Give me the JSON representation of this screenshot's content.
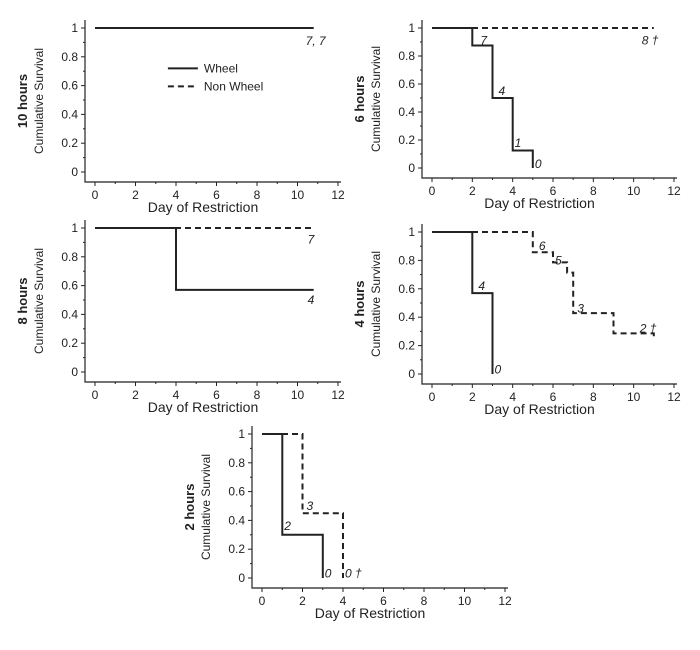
{
  "chart_data": [
    {
      "type": "line",
      "title": "10 hours",
      "xlabel": "Day of Restriction",
      "ylabel": "Cumulative Survival",
      "xlim": [
        0,
        12
      ],
      "ylim": [
        0,
        1
      ],
      "xticks": [
        0,
        2,
        4,
        6,
        8,
        10,
        12
      ],
      "yticks": [
        0,
        0.2,
        0.4,
        0.6,
        0.8,
        1
      ],
      "legend": {
        "position": "center",
        "entries": [
          {
            "name": "Wheel",
            "style": "solid"
          },
          {
            "name": "Non Wheel",
            "style": "dashed"
          }
        ]
      },
      "series": [
        {
          "name": "Wheel",
          "style": "solid",
          "x": [
            0,
            10.8
          ],
          "y": [
            1,
            1
          ]
        },
        {
          "name": "Non Wheel",
          "style": "dashed",
          "x": [
            0,
            10.8
          ],
          "y": [
            1,
            1
          ]
        }
      ],
      "annotations": [
        {
          "text": "7, 7",
          "x": 10.4,
          "y": 0.91
        }
      ]
    },
    {
      "type": "line",
      "title": "6 hours",
      "xlabel": "Day of Restriction",
      "ylabel": "Cumulative Survival",
      "xlim": [
        0,
        12
      ],
      "ylim": [
        0,
        1
      ],
      "xticks": [
        0,
        2,
        4,
        6,
        8,
        10,
        12
      ],
      "yticks": [
        0,
        0.2,
        0.4,
        0.6,
        0.8,
        1
      ],
      "series": [
        {
          "name": "Wheel",
          "style": "solid",
          "x": [
            0,
            2,
            2,
            3,
            3,
            4,
            4,
            5,
            5
          ],
          "y": [
            1,
            1,
            0.875,
            0.875,
            0.5,
            0.5,
            0.125,
            0.125,
            0
          ]
        },
        {
          "name": "Non Wheel",
          "style": "dashed",
          "x": [
            0,
            11
          ],
          "y": [
            1,
            1
          ]
        }
      ],
      "annotations": [
        {
          "text": "7",
          "x": 2.4,
          "y": 0.91
        },
        {
          "text": "4",
          "x": 3.3,
          "y": 0.55
        },
        {
          "text": "1",
          "x": 4.1,
          "y": 0.18
        },
        {
          "text": "0",
          "x": 5.1,
          "y": 0.03
        },
        {
          "text": "8 †",
          "x": 10.4,
          "y": 0.91
        }
      ]
    },
    {
      "type": "line",
      "title": "8 hours",
      "xlabel": "Day of Restriction",
      "ylabel": "Cumulative Survival",
      "xlim": [
        0,
        12
      ],
      "ylim": [
        0,
        1
      ],
      "xticks": [
        0,
        2,
        4,
        6,
        8,
        10,
        12
      ],
      "yticks": [
        0,
        0.2,
        0.4,
        0.6,
        0.8,
        1
      ],
      "series": [
        {
          "name": "Wheel",
          "style": "solid",
          "x": [
            0,
            4,
            4,
            10.8
          ],
          "y": [
            1,
            1,
            0.57,
            0.57
          ]
        },
        {
          "name": "Non Wheel",
          "style": "dashed",
          "x": [
            0,
            10.8
          ],
          "y": [
            1,
            1
          ]
        }
      ],
      "annotations": [
        {
          "text": "7",
          "x": 10.5,
          "y": 0.92
        },
        {
          "text": "4",
          "x": 10.5,
          "y": 0.5
        }
      ]
    },
    {
      "type": "line",
      "title": "4 hours",
      "xlabel": "Day of Restriction",
      "ylabel": "Cumulative Survival",
      "xlim": [
        0,
        12
      ],
      "ylim": [
        0,
        1
      ],
      "xticks": [
        0,
        2,
        4,
        6,
        8,
        10,
        12
      ],
      "yticks": [
        0,
        0.2,
        0.4,
        0.6,
        0.8,
        1
      ],
      "series": [
        {
          "name": "Wheel",
          "style": "solid",
          "x": [
            0,
            2,
            2,
            3,
            3
          ],
          "y": [
            1,
            1,
            0.57,
            0.57,
            0
          ]
        },
        {
          "name": "Non Wheel",
          "style": "dashed",
          "x": [
            0,
            5,
            5,
            6,
            6,
            6.7,
            6.7,
            7,
            7,
            9,
            9,
            11,
            11
          ],
          "y": [
            1,
            1,
            0.857,
            0.857,
            0.786,
            0.786,
            0.714,
            0.714,
            0.429,
            0.429,
            0.286,
            0.286,
            0.25
          ]
        }
      ],
      "annotations": [
        {
          "text": "4",
          "x": 2.3,
          "y": 0.62
        },
        {
          "text": "0",
          "x": 3.1,
          "y": 0.03
        },
        {
          "text": "6",
          "x": 5.3,
          "y": 0.9
        },
        {
          "text": "5",
          "x": 6.1,
          "y": 0.8
        },
        {
          "text": "3",
          "x": 7.2,
          "y": 0.46
        },
        {
          "text": "2 †",
          "x": 10.3,
          "y": 0.32
        }
      ]
    },
    {
      "type": "line",
      "title": "2 hours",
      "xlabel": "Day of Restriction",
      "ylabel": "Cumulative Survival",
      "xlim": [
        0,
        12
      ],
      "ylim": [
        0,
        1
      ],
      "xticks": [
        0,
        2,
        4,
        6,
        8,
        10,
        12
      ],
      "yticks": [
        0,
        0.2,
        0.4,
        0.6,
        0.8,
        1
      ],
      "series": [
        {
          "name": "Wheel",
          "style": "solid",
          "x": [
            0,
            1,
            1,
            3,
            3
          ],
          "y": [
            1,
            1,
            0.3,
            0.3,
            0
          ]
        },
        {
          "name": "Non Wheel",
          "style": "dashed",
          "x": [
            0,
            2,
            2,
            4,
            4
          ],
          "y": [
            1,
            1,
            0.45,
            0.45,
            0
          ]
        }
      ],
      "annotations": [
        {
          "text": "2",
          "x": 1.1,
          "y": 0.36
        },
        {
          "text": "3",
          "x": 2.2,
          "y": 0.5
        },
        {
          "text": "0",
          "x": 3.1,
          "y": 0.03
        },
        {
          "text": "0 †",
          "x": 4.1,
          "y": 0.03
        }
      ]
    }
  ]
}
